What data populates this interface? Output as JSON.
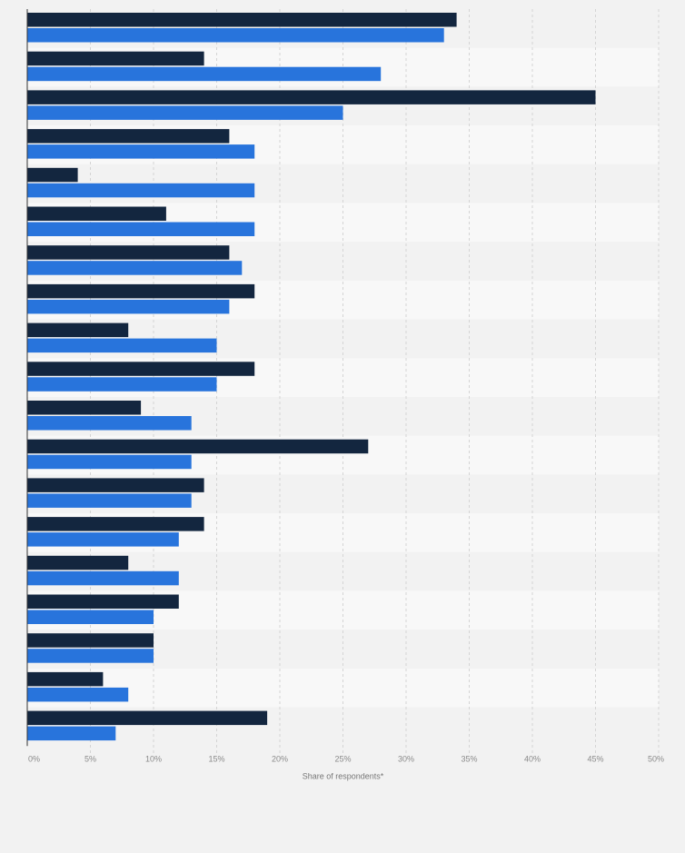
{
  "colors": {
    "background": "#f2f2f2",
    "band_even": "#f2f2f2",
    "band_odd": "#f8f8f8",
    "grid": "#d4d4d4",
    "axis": "#333333"
  },
  "chart_data": {
    "type": "bar",
    "orientation": "horizontal",
    "title": "",
    "xlabel": "Share of respondents*",
    "ylabel": "",
    "xlim": [
      0,
      50
    ],
    "x_ticks": [
      "0%",
      "5%",
      "10%",
      "15%",
      "20%",
      "25%",
      "30%",
      "35%",
      "40%",
      "45%",
      "50%"
    ],
    "grid": true,
    "legend": "none",
    "categories": [
      "",
      "",
      "",
      "",
      "",
      "",
      "",
      "",
      "",
      "",
      "",
      "",
      "",
      "",
      "",
      "",
      "",
      "",
      ""
    ],
    "series": [
      {
        "color": "#13263f",
        "values": [
          34,
          14,
          45,
          16,
          4,
          11,
          16,
          18,
          8,
          18,
          9,
          27,
          14,
          14,
          8,
          12,
          10,
          6,
          19
        ]
      },
      {
        "color": "#2874dc",
        "values": [
          33,
          28,
          25,
          18,
          18,
          18,
          17,
          16,
          15,
          15,
          13,
          13,
          13,
          12,
          12,
          10,
          10,
          8,
          7
        ]
      }
    ]
  }
}
